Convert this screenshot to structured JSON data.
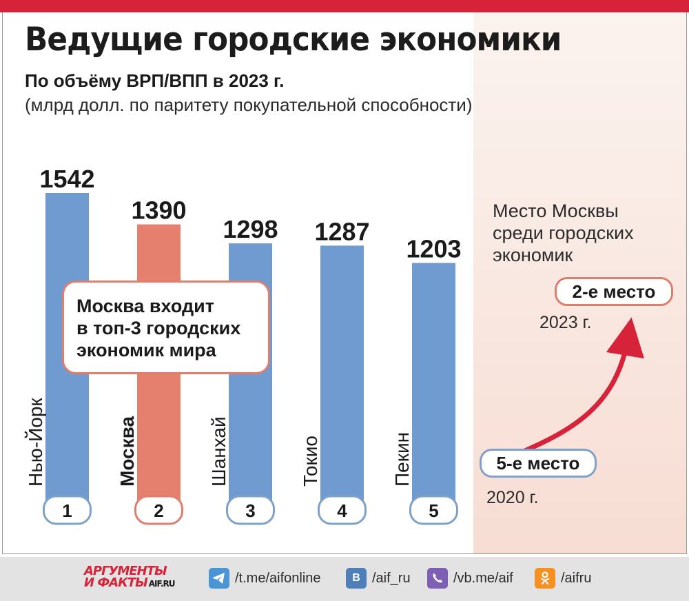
{
  "title": "Ведущие городские экономики",
  "subtitle": "По объёму ВРП/ВПП в 2023 г.",
  "subtitle_units": "(млрд долл. по паритету покупательной способности)",
  "callout": {
    "line1": "Москва входит",
    "line2": "в топ-3 городских",
    "line3": "экономик мира"
  },
  "side_panel": {
    "title_line1": "Место Москвы",
    "title_line2": "среди городских",
    "title_line3": "экономик",
    "badge_2023": "2-е место",
    "year_2023": "2023 г.",
    "badge_2020": "5-е место",
    "year_2020": "2020 г."
  },
  "colors": {
    "bar_default": "#6f9bd0",
    "bar_highlight": "#e5806f",
    "accent_red": "#d6233a",
    "badge_border_blue": "#7fa1c9",
    "badge_border_red": "#e07d6d"
  },
  "chart_data": {
    "type": "bar",
    "title": "Ведущие городские экономики",
    "subtitle": "По объёму ВРП/ВПП в 2023 г.",
    "ylabel": "(млрд долл. по паритету покупательной способности)",
    "xlabel": "",
    "categories": [
      "Нью-Йорк",
      "Москва",
      "Шанхай",
      "Токио",
      "Пекин"
    ],
    "values": [
      1542,
      1390,
      1298,
      1287,
      1203
    ],
    "ranks": [
      "1",
      "2",
      "3",
      "4",
      "5"
    ],
    "highlight": "Москва",
    "ylim": [
      0,
      1542
    ],
    "grid": false,
    "legend": "none"
  },
  "footer": {
    "logo_line1": "АРГУМЕНТЫ",
    "logo_line2": "И ФАКТЫ",
    "logo_domain": "AIF.RU",
    "telegram": "/t.me/aifonline",
    "vk": "/aif_ru",
    "viber": "/vb.me/aif",
    "ok": "/aifru",
    "icons": [
      "telegram-icon",
      "vk-icon",
      "viber-icon",
      "odnoklassniki-icon"
    ]
  }
}
